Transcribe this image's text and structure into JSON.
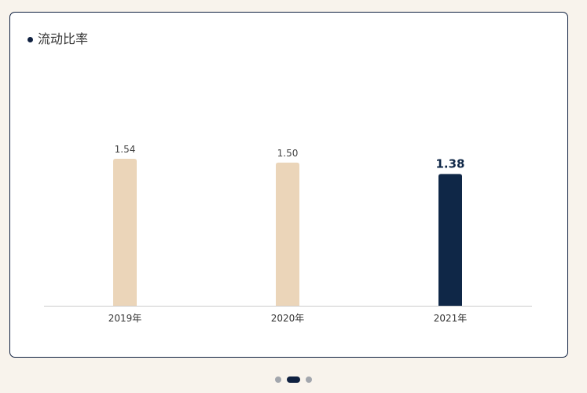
{
  "card": {
    "title": "流动比率"
  },
  "chart_data": {
    "type": "bar",
    "title": "流动比率",
    "xlabel": "",
    "ylabel": "",
    "categories": [
      "2019年",
      "2020年",
      "2021年"
    ],
    "series": [
      {
        "values": [
          1.54,
          1.5,
          1.38
        ],
        "labels": [
          "1.54",
          "1.50",
          "1.38"
        ]
      }
    ],
    "ylim": [
      0,
      1.54
    ],
    "grid": false,
    "highlight_index": 2,
    "colors": {
      "bar": "#ebd5b9",
      "highlight": "#0f2747",
      "axis": "#cccccc",
      "label": "#444444",
      "highlight_label": "#0f2747",
      "tick": "#333333"
    }
  },
  "pager": {
    "count": 3,
    "active_index": 1
  }
}
